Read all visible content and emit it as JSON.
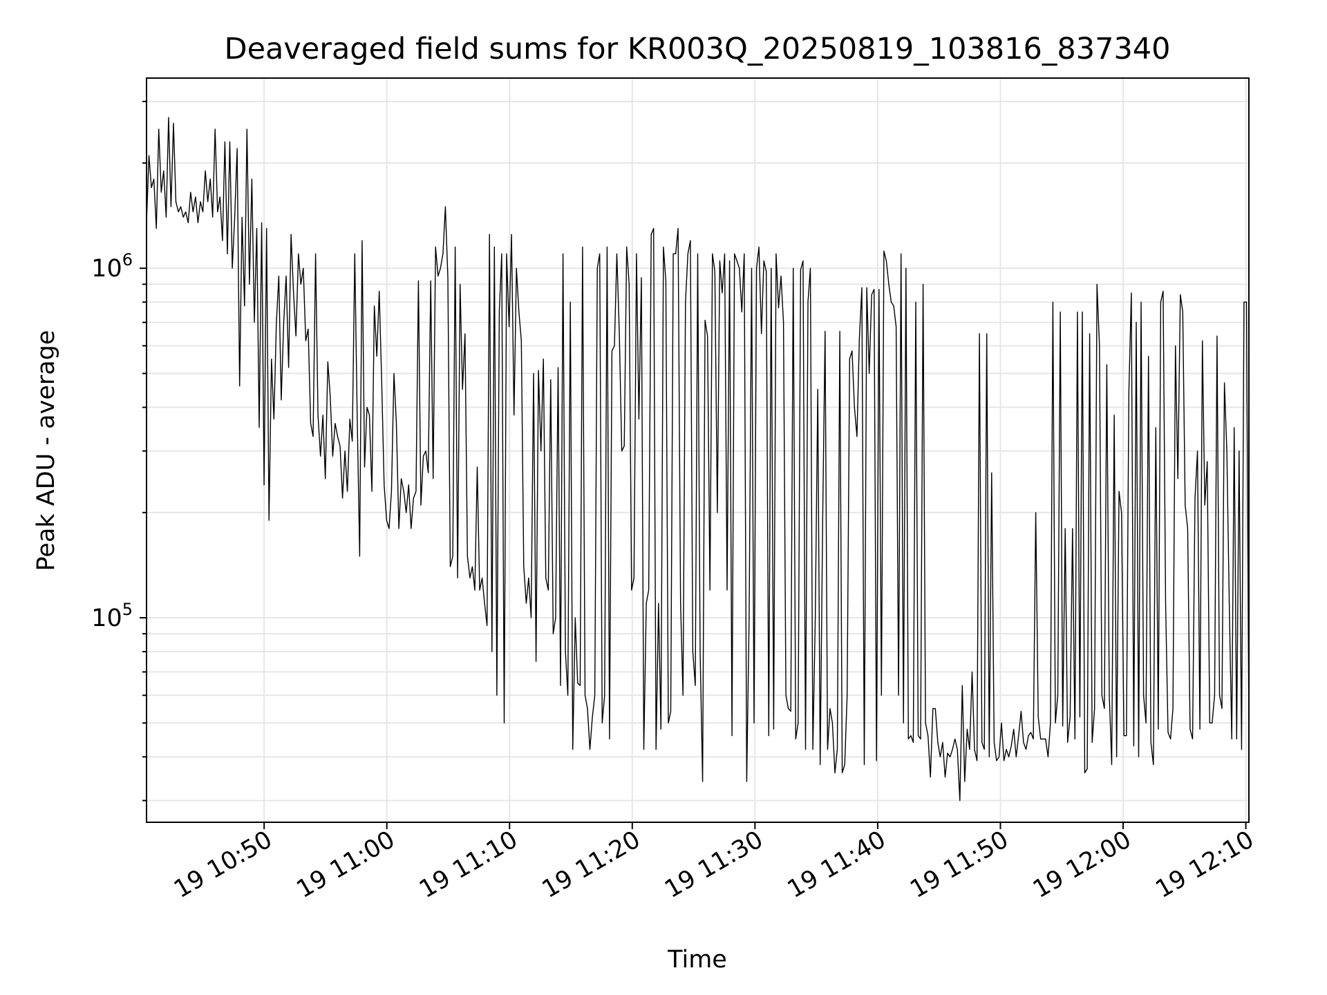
{
  "chart_data": {
    "type": "line",
    "title": "Deaveraged field sums for KR003Q_20250819_103816_837340",
    "xlabel": "Time",
    "ylabel": "Peak ADU - average",
    "y_scale": "log",
    "xlim": [
      "19 10:40:25",
      "19 12:10:15"
    ],
    "ylim": [
      26000,
      3500000
    ],
    "x_ticks": [
      "19 10:50",
      "19 11:00",
      "19 11:10",
      "19 11:20",
      "19 11:30",
      "19 11:40",
      "19 11:50",
      "19 12:00",
      "19 12:10"
    ],
    "y_ticks": [
      {
        "base": "10",
        "exp": "5",
        "value": 100000
      },
      {
        "base": "10",
        "exp": "6",
        "value": 1000000
      }
    ],
    "grid": true,
    "legend": "none",
    "line_color": "#000000",
    "series": [
      {
        "x_start": "19 10:40:25",
        "x_end": "19 12:10:15",
        "values": [
          1350000,
          2100000,
          1700000,
          1800000,
          1300000,
          2500000,
          1650000,
          1900000,
          1400000,
          2700000,
          1500000,
          2600000,
          1550000,
          1450000,
          1500000,
          1400000,
          1450000,
          1350000,
          1650000,
          1450000,
          1600000,
          1350000,
          1550000,
          1450000,
          1900000,
          1550000,
          1800000,
          1400000,
          2500000,
          1450000,
          1600000,
          1200000,
          2300000,
          1100000,
          2300000,
          1000000,
          1400000,
          2200000,
          460000,
          1400000,
          780000,
          2500000,
          900000,
          1800000,
          700000,
          1300000,
          350000,
          1350000,
          240000,
          1300000,
          190000,
          550000,
          370000,
          700000,
          950000,
          420000,
          700000,
          950000,
          520000,
          1250000,
          850000,
          640000,
          1100000,
          900000,
          1000000,
          620000,
          670000,
          360000,
          330000,
          1100000,
          380000,
          290000,
          380000,
          250000,
          540000,
          430000,
          290000,
          360000,
          330000,
          310000,
          220000,
          300000,
          230000,
          370000,
          320000,
          1100000,
          380000,
          150000,
          1200000,
          270000,
          400000,
          380000,
          230000,
          780000,
          560000,
          860000,
          470000,
          240000,
          190000,
          180000,
          230000,
          500000,
          360000,
          180000,
          250000,
          230000,
          200000,
          240000,
          180000,
          220000,
          230000,
          920000,
          210000,
          290000,
          300000,
          260000,
          920000,
          250000,
          1150000,
          950000,
          1000000,
          1100000,
          1500000,
          940000,
          140000,
          150000,
          1150000,
          130000,
          900000,
          450000,
          650000,
          150000,
          130000,
          140000,
          120000,
          270000,
          120000,
          130000,
          110000,
          95000,
          1250000,
          80000,
          1150000,
          60000,
          750000,
          1100000,
          50000,
          1100000,
          680000,
          1250000,
          380000,
          1000000,
          750000,
          620000,
          140000,
          110000,
          130000,
          100000,
          500000,
          75000,
          510000,
          300000,
          550000,
          130000,
          120000,
          480000,
          90000,
          100000,
          520000,
          64000,
          1100000,
          80000,
          60000,
          800000,
          42000,
          100000,
          65000,
          64000,
          1150000,
          60000,
          55000,
          42000,
          52000,
          60000,
          1000000,
          1100000,
          50000,
          60000,
          1150000,
          45000,
          580000,
          600000,
          1100000,
          650000,
          300000,
          310000,
          1150000,
          900000,
          120000,
          130000,
          1100000,
          370000,
          940000,
          42000,
          110000,
          120000,
          1250000,
          1300000,
          42000,
          110000,
          48000,
          1150000,
          920000,
          50000,
          54000,
          1100000,
          1100000,
          1300000,
          110000,
          60000,
          800000,
          1100000,
          1200000,
          80000,
          64000,
          1100000,
          80000,
          34000,
          710000,
          640000,
          120000,
          1100000,
          980000,
          200000,
          1050000,
          850000,
          1100000,
          120000,
          1050000,
          46000,
          1100000,
          1050000,
          1000000,
          750000,
          1100000,
          34000,
          100000,
          1000000,
          50000,
          1000000,
          1150000,
          650000,
          1050000,
          980000,
          46000,
          1000000,
          48000,
          1100000,
          770000,
          950000,
          700000,
          60000,
          55000,
          54000,
          1000000,
          45000,
          50000,
          990000,
          1050000,
          42000,
          800000,
          1000000,
          42000,
          100000,
          450000,
          38000,
          190000,
          660000,
          42000,
          55000,
          50000,
          36000,
          42000,
          660000,
          36000,
          38000,
          60000,
          550000,
          580000,
          400000,
          330000,
          630000,
          880000,
          38000,
          880000,
          500000,
          840000,
          870000,
          39000,
          870000,
          60000,
          1120000,
          1050000,
          900000,
          800000,
          780000,
          680000,
          60000,
          1100000,
          50000,
          1000000,
          45000,
          46000,
          44000,
          800000,
          46000,
          45000,
          900000,
          50000,
          46000,
          35000,
          55000,
          55000,
          44000,
          40000,
          44000,
          35000,
          41000,
          40000,
          42000,
          45000,
          42000,
          30000,
          64000,
          34000,
          48000,
          42000,
          70000,
          42000,
          39000,
          650000,
          44000,
          42000,
          650000,
          40000,
          260000,
          44000,
          39000,
          40000,
          50000,
          39000,
          42000,
          40000,
          43000,
          48000,
          40000,
          46000,
          54000,
          44000,
          42000,
          46000,
          47000,
          45000,
          200000,
          52000,
          45000,
          45000,
          45000,
          40000,
          50000,
          800000,
          50000,
          60000,
          750000,
          49000,
          180000,
          44000,
          52000,
          180000,
          45000,
          750000,
          52000,
          750000,
          36000,
          37000,
          650000,
          44000,
          55000,
          900000,
          600000,
          60000,
          55000,
          530000,
          60000,
          38000,
          380000,
          40000,
          230000,
          200000,
          46000,
          46000,
          440000,
          850000,
          43000,
          700000,
          40000,
          800000,
          60000,
          50000,
          560000,
          44000,
          38000,
          350000,
          48000,
          800000,
          860000,
          110000,
          47000,
          45000,
          55000,
          600000,
          250000,
          840000,
          750000,
          210000,
          180000,
          48000,
          45000,
          220000,
          300000,
          48000,
          620000,
          210000,
          280000,
          50000,
          50000,
          60000,
          640000,
          60000,
          55000,
          470000,
          300000,
          110000,
          45000,
          350000,
          45000,
          300000,
          42000,
          800000,
          800000,
          46000
        ]
      }
    ]
  }
}
